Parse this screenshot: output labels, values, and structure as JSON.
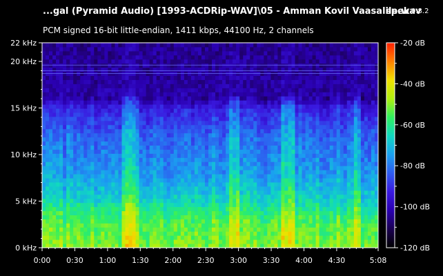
{
  "window": {
    "file_title": "...gal (Pyramid Audio) [1993-ACDRip-WAV]\\05 - Amman Kovil Vaasalile.wav",
    "app_name": "spek",
    "app_version": "0.8.2",
    "stream_info": "PCM signed 16-bit little-endian, 1411 kbps, 44100 Hz, 2 channels"
  },
  "colors": {
    "background": "#000000",
    "axis": "#ffffff",
    "palette": [
      "#000000",
      "#1a0050",
      "#2a00b0",
      "#3a1ae0",
      "#2e5cf0",
      "#1aa0f0",
      "#10d8c0",
      "#30f060",
      "#b0f010",
      "#f0e000",
      "#ff8000",
      "#ff2000"
    ]
  },
  "chart_data": {
    "type": "heatmap",
    "title": "",
    "xlabel": "",
    "ylabel": "",
    "x_unit": "time (m:ss)",
    "y_unit": "kHz",
    "colorbar_unit": "dB",
    "xlim": [
      "0:00",
      "5:08"
    ],
    "ylim": [
      0,
      22
    ],
    "clim": [
      -120,
      -20
    ],
    "x_ticks": [
      "0:00",
      "0:30",
      "1:00",
      "1:30",
      "2:00",
      "2:30",
      "3:00",
      "3:30",
      "4:00",
      "4:30",
      "5:08"
    ],
    "y_ticks": [
      "0 kHz",
      "5 kHz",
      "10 kHz",
      "15 kHz",
      "20 kHz",
      "22 kHz"
    ],
    "colorbar_ticks": [
      "-20 dB",
      "-40 dB",
      "-60 dB",
      "-80 dB",
      "-100 dB",
      "-120 dB"
    ],
    "frequency_profile": [
      {
        "freq_khz": 0,
        "level_db": -50
      },
      {
        "freq_khz": 3,
        "level_db": -55
      },
      {
        "freq_khz": 5,
        "level_db": -65
      },
      {
        "freq_khz": 8,
        "level_db": -75
      },
      {
        "freq_khz": 12,
        "level_db": -82
      },
      {
        "freq_khz": 15,
        "level_db": -92
      },
      {
        "freq_khz": 16,
        "level_db": -102
      },
      {
        "freq_khz": 22,
        "level_db": -105
      }
    ],
    "loud_passages": [
      {
        "start": "1:12",
        "end": "1:30"
      },
      {
        "start": "2:50",
        "end": "3:00"
      },
      {
        "start": "3:40",
        "end": "3:52"
      },
      {
        "start": "4:45",
        "end": "4:52"
      }
    ]
  }
}
